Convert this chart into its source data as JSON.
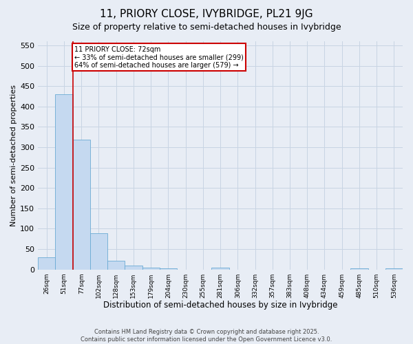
{
  "title": "11, PRIORY CLOSE, IVYBRIDGE, PL21 9JG",
  "subtitle": "Size of property relative to semi-detached houses in Ivybridge",
  "xlabel": "Distribution of semi-detached houses by size in Ivybridge",
  "ylabel": "Number of semi-detached properties",
  "footer_line1": "Contains HM Land Registry data © Crown copyright and database right 2025.",
  "footer_line2": "Contains public sector information licensed under the Open Government Licence v3.0.",
  "bar_values": [
    30,
    430,
    318,
    88,
    22,
    10,
    5,
    3,
    0,
    0,
    5,
    0,
    0,
    0,
    0,
    0,
    0,
    0,
    3,
    0,
    3
  ],
  "x_labels": [
    "26sqm",
    "51sqm",
    "77sqm",
    "102sqm",
    "128sqm",
    "153sqm",
    "179sqm",
    "204sqm",
    "230sqm",
    "255sqm",
    "281sqm",
    "306sqm",
    "332sqm",
    "357sqm",
    "383sqm",
    "408sqm",
    "434sqm",
    "459sqm",
    "485sqm",
    "510sqm",
    "536sqm"
  ],
  "bar_color": "#c5d9f0",
  "bar_edge_color": "#6aaad4",
  "grid_color": "#c8d4e3",
  "bg_color": "#e8edf5",
  "vline_color": "#cc0000",
  "vline_x_index": 2,
  "annotation_text_line1": "11 PRIORY CLOSE: 72sqm",
  "annotation_text_line2": "← 33% of semi-detached houses are smaller (299)",
  "annotation_text_line3": "64% of semi-detached houses are larger (579) →",
  "annotation_box_color": "#ffffff",
  "annotation_box_edge": "#cc0000",
  "ylim": [
    0,
    560
  ],
  "yticks": [
    0,
    50,
    100,
    150,
    200,
    250,
    300,
    350,
    400,
    450,
    500,
    550
  ]
}
